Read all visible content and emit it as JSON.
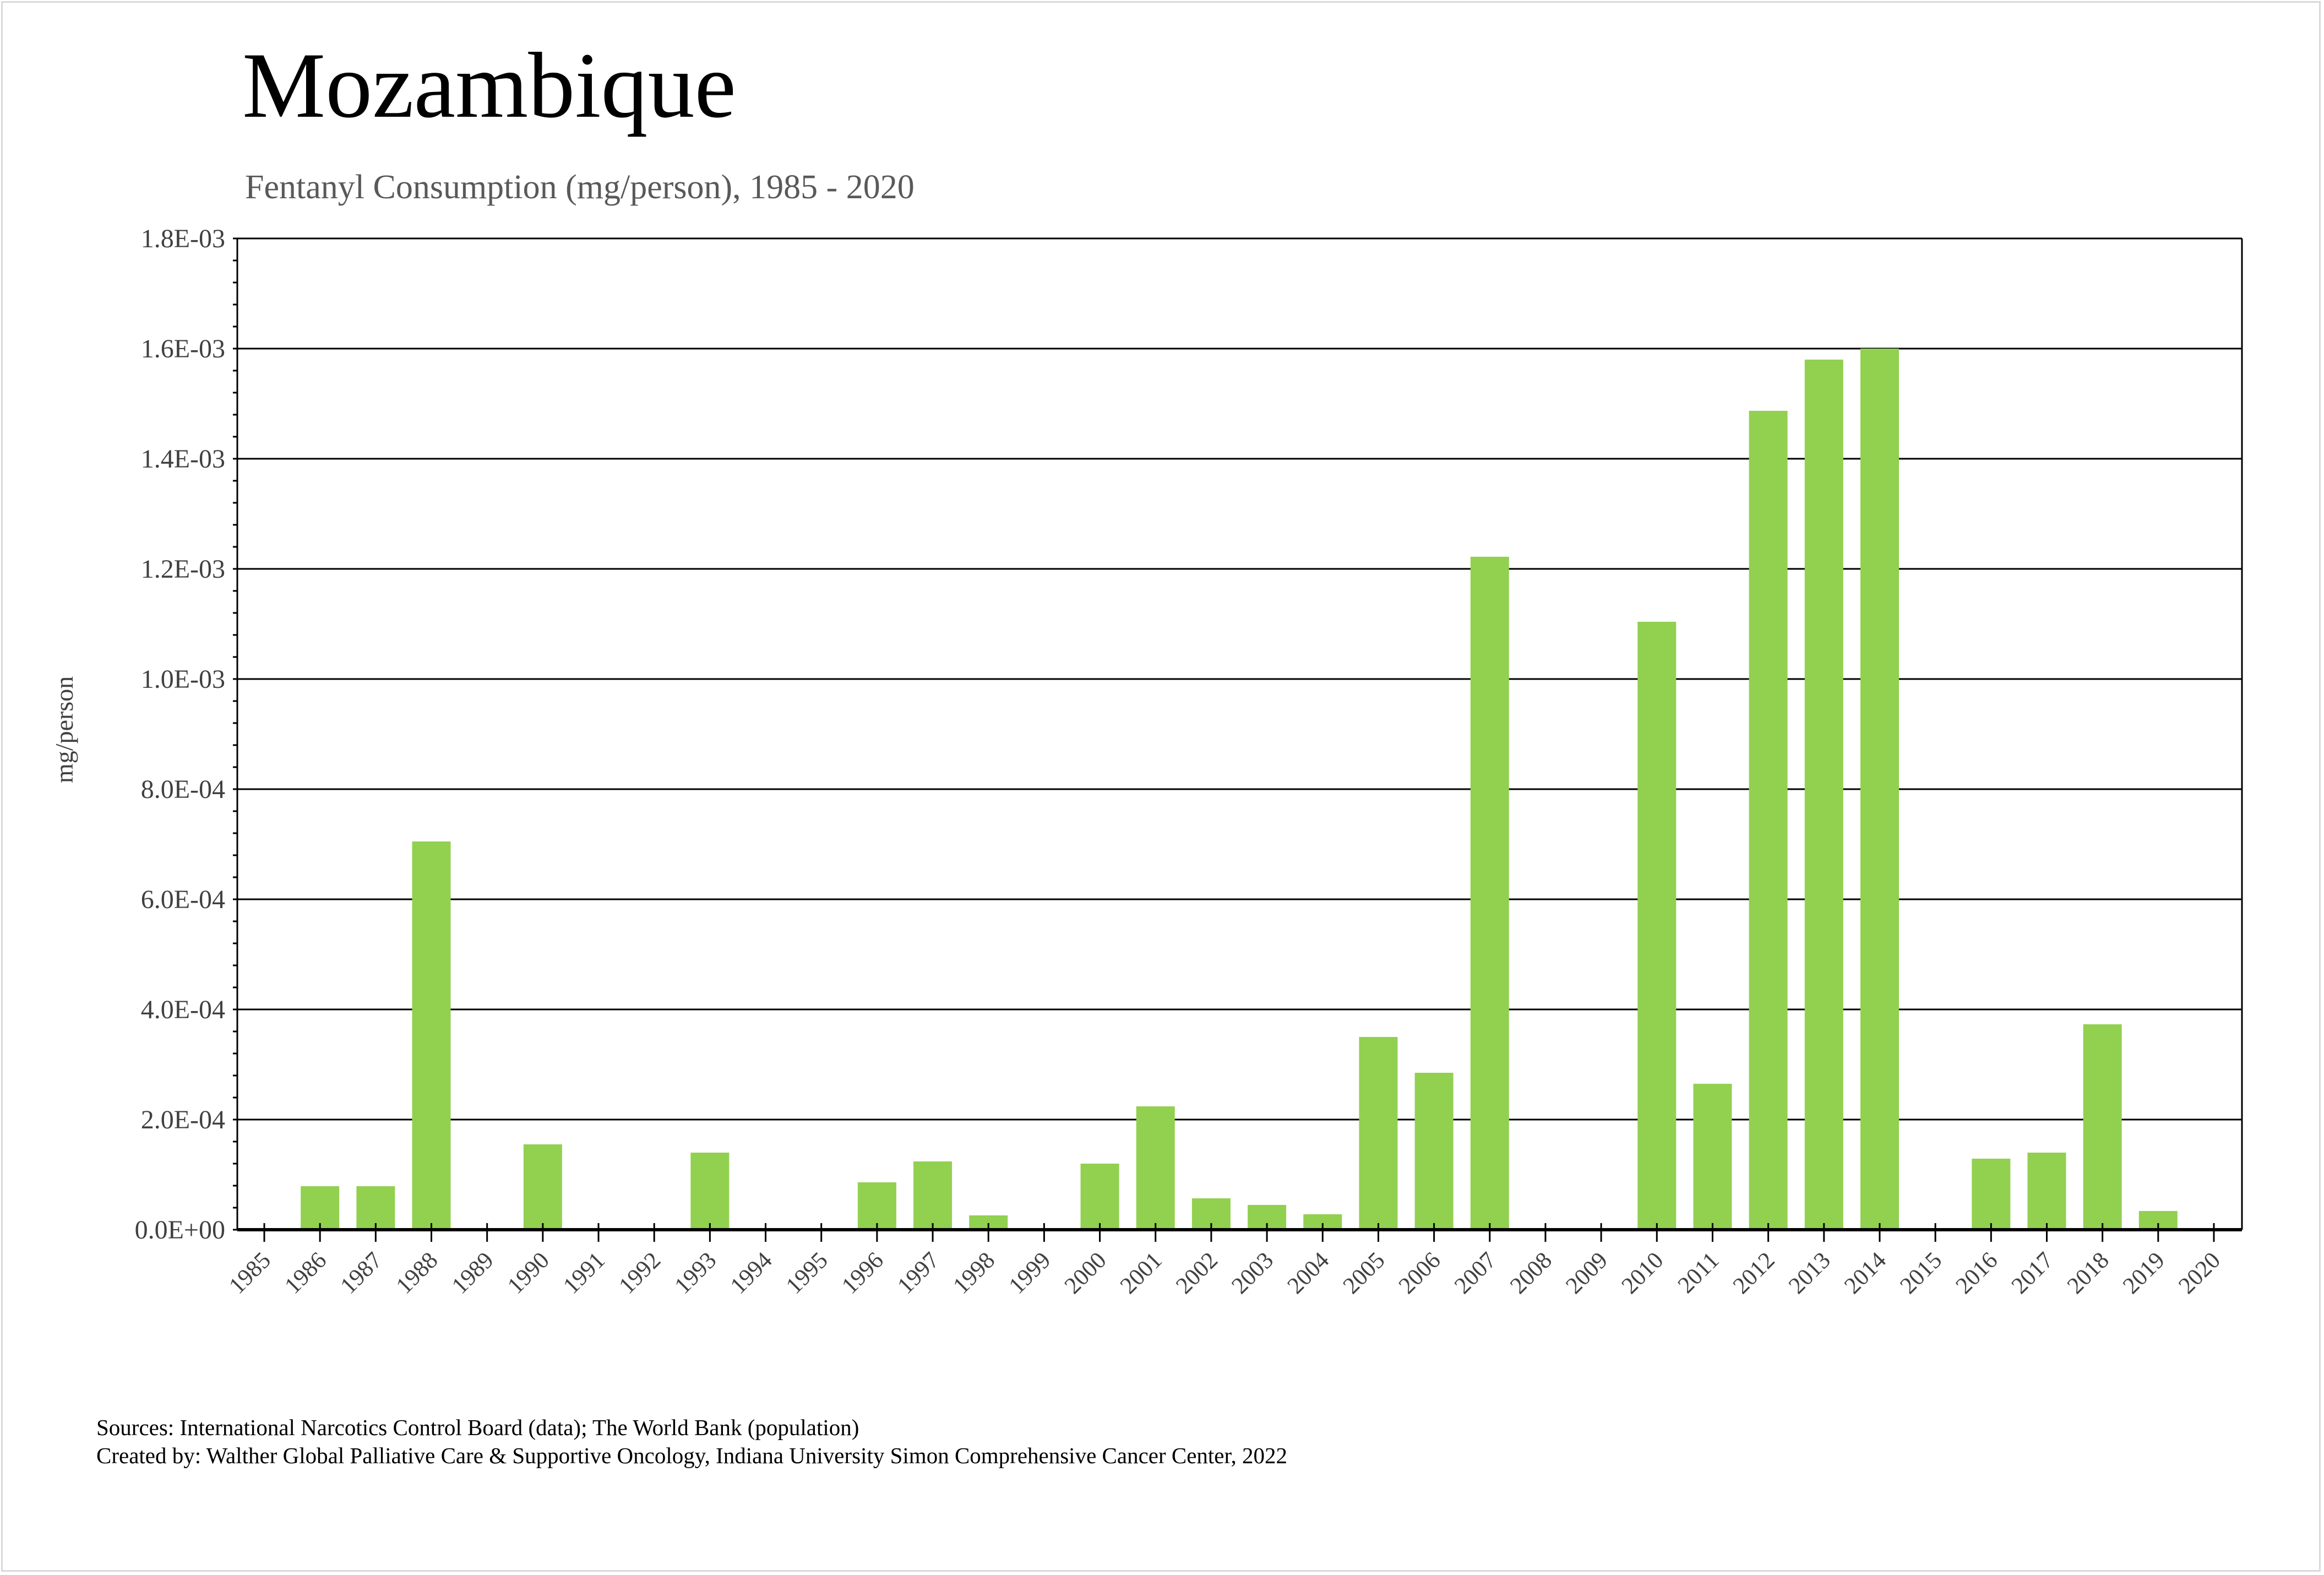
{
  "chart_data": {
    "type": "bar",
    "title": "Mozambique",
    "subtitle": "Fentanyl Consumption (mg/person), 1985 - 2020",
    "xlabel": "",
    "ylabel": "mg/person",
    "ylim": [
      0,
      0.0018
    ],
    "yticks": [
      "0.0E+00",
      "2.0E-04",
      "4.0E-04",
      "6.0E-04",
      "8.0E-04",
      "1.0E-03",
      "1.2E-03",
      "1.4E-03",
      "1.6E-03",
      "1.8E-03"
    ],
    "grid": true,
    "categories": [
      "1985",
      "1986",
      "1987",
      "1988",
      "1989",
      "1990",
      "1991",
      "1992",
      "1993",
      "1994",
      "1995",
      "1996",
      "1997",
      "1998",
      "1999",
      "2000",
      "2001",
      "2002",
      "2003",
      "2004",
      "2005",
      "2006",
      "2007",
      "2008",
      "2009",
      "2010",
      "2011",
      "2012",
      "2013",
      "2014",
      "2015",
      "2016",
      "2017",
      "2018",
      "2019",
      "2020"
    ],
    "values": [
      0,
      7.9e-05,
      7.9e-05,
      0.000705,
      0,
      0.000155,
      0,
      0,
      0.00014,
      0,
      0,
      8.6e-05,
      0.000124,
      2.6e-05,
      0,
      0.00012,
      0.000224,
      5.7e-05,
      4.5e-05,
      2.8e-05,
      0.00035,
      0.000285,
      0.001222,
      0,
      0,
      0.001104,
      0.000265,
      0.001487,
      0.00158,
      0.0016,
      0,
      0.000129,
      0.00014,
      0.000373,
      3.4e-05,
      0
    ],
    "bar_color": "#92d050"
  },
  "footer": {
    "sources": "Sources: International Narcotics Control Board (data); The World Bank (population)",
    "created_by": "Created by: Walther Global Palliative Care & Supportive Oncology, Indiana University Simon Comprehensive Cancer Center, 2022"
  }
}
